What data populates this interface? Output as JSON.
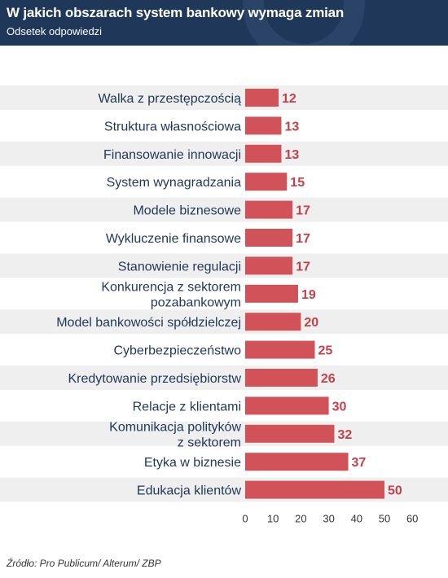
{
  "title": "W jakich obszarach system bankowy wymaga zmian",
  "subtitle": "Odsetek odpowiedzi",
  "source": "Źródło: Pro Publicum/ Alterum/ ZBP",
  "colors": {
    "header": "#1f3759",
    "bar": "#d2525a",
    "value": "#c4414b",
    "stripe": "#efefef"
  },
  "chart_data": {
    "type": "bar",
    "orientation": "horizontal",
    "categories": [
      [
        "Walka z przestępczością"
      ],
      [
        "Struktura własnościowa"
      ],
      [
        "Finansowanie innowacji"
      ],
      [
        "System wynagradzania"
      ],
      [
        "Modele biznesowe"
      ],
      [
        "Wykluczenie finansowe"
      ],
      [
        "Stanowienie regulacji"
      ],
      [
        "Konkurencja z sektorem",
        "pozabankowym"
      ],
      [
        "Model bankowości spółdzielczej"
      ],
      [
        "Cyberbezpieczeństwo"
      ],
      [
        "Kredytowanie przedsiębiorstw"
      ],
      [
        "Relacje z klientami"
      ],
      [
        "Komunikacja polityków",
        "z sektorem"
      ],
      [
        "Etyka w biznesie"
      ],
      [
        "Edukacja klientów"
      ]
    ],
    "values": [
      12,
      13,
      13,
      15,
      17,
      17,
      17,
      19,
      20,
      25,
      26,
      30,
      32,
      37,
      50
    ],
    "xlim": [
      0,
      60
    ],
    "xticks": [
      0,
      10,
      20,
      30,
      40,
      50,
      60
    ],
    "alternating_row_shading": true
  }
}
